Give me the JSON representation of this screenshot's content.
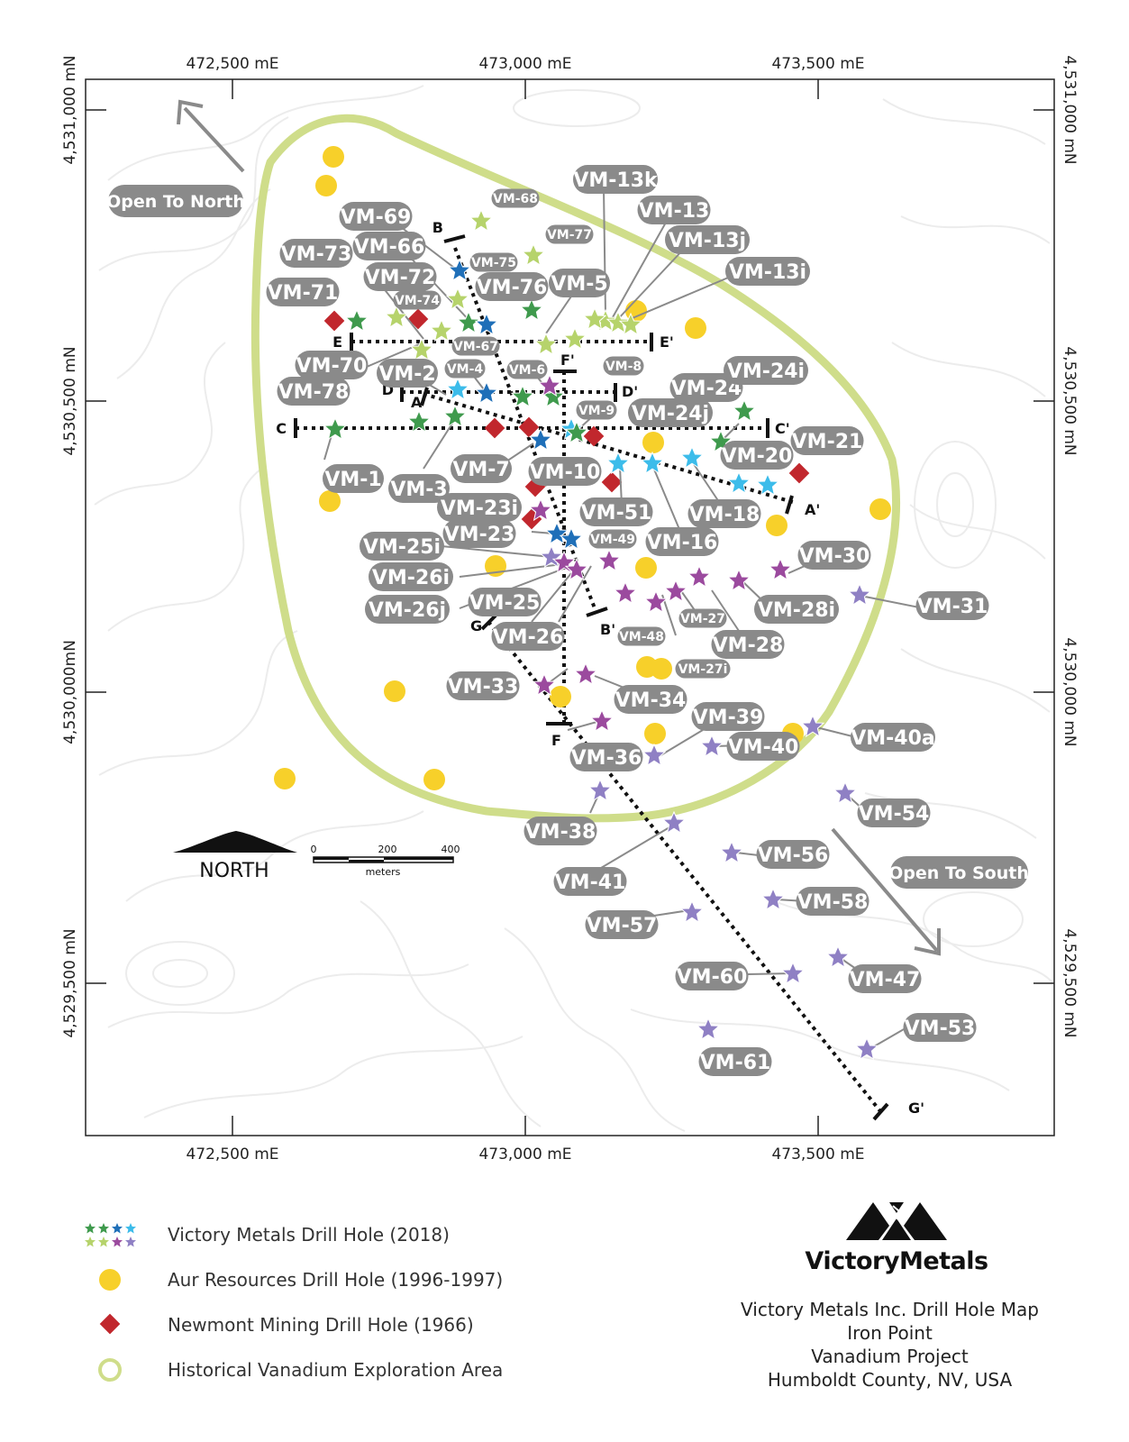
{
  "axes": {
    "top_easting": [
      "472,500 mE",
      "473,000 mE",
      "473,500 mE"
    ],
    "bottom_easting": [
      "472,500 mE",
      "473,000 mE",
      "473,500 mE"
    ],
    "left_northing": [
      "4,531,000 mN",
      "4,530,500 mN",
      "4,530,000mN",
      "4,529,500 mN"
    ],
    "right_northing": [
      "4,531,000 mN",
      "4,530,500 mN",
      "4,530,000 mN",
      "4,529,500 mN"
    ]
  },
  "annotations": {
    "open_north": "Open To North",
    "open_south": "Open To South",
    "north_label": "NORTH",
    "scale_ticks": [
      "0",
      "200",
      "400"
    ],
    "scale_unit": "meters"
  },
  "sections": {
    "A": "A",
    "A_prime": "A'",
    "B": "B",
    "B_prime": "B'",
    "C": "C",
    "C_prime": "C'",
    "D": "D",
    "D_prime": "D'",
    "E": "E",
    "E_prime": "E'",
    "F": "F",
    "F_prime": "F'",
    "G": "G",
    "G_prime": "G'"
  },
  "drill_holes": [
    "VM-1",
    "VM-2",
    "VM-3",
    "VM-4",
    "VM-5",
    "VM-6",
    "VM-7",
    "VM-8",
    "VM-9",
    "VM-10",
    "VM-13k",
    "VM-13",
    "VM-13j",
    "VM-13i",
    "VM-16",
    "VM-18",
    "VM-20",
    "VM-21",
    "VM-23i",
    "VM-23",
    "VM-24",
    "VM-24i",
    "VM-24j",
    "VM-25i",
    "VM-25",
    "VM-26i",
    "VM-26j",
    "VM-26",
    "VM-27",
    "VM-27i",
    "VM-28",
    "VM-28i",
    "VM-30",
    "VM-31",
    "VM-33",
    "VM-34",
    "VM-36",
    "VM-38",
    "VM-39",
    "VM-40",
    "VM-40a",
    "VM-41",
    "VM-47",
    "VM-48",
    "VM-49",
    "VM-51",
    "VM-53",
    "VM-54",
    "VM-56",
    "VM-57",
    "VM-58",
    "VM-60",
    "VM-61",
    "VM-66",
    "VM-67",
    "VM-68",
    "VM-69",
    "VM-70",
    "VM-71",
    "VM-72",
    "VM-73",
    "VM-74",
    "VM-75",
    "VM-76",
    "VM-77",
    "VM-78"
  ],
  "legend": [
    {
      "symbol": "star-set",
      "label": "Victory Metals Drill Hole (2018)"
    },
    {
      "symbol": "yellow-circle",
      "label": "Aur Resources Drill Hole (1996-1997)"
    },
    {
      "symbol": "red-diamond",
      "label": "Newmont Mining Drill Hole (1966)"
    },
    {
      "symbol": "green-ring",
      "label": "Historical Vanadium Exploration Area"
    }
  ],
  "brand": {
    "name": "VictoryMetals"
  },
  "title_lines": [
    "Victory Metals Inc. Drill Hole Map",
    "Iron Point",
    "Vanadium Project",
    "Humboldt County, NV, USA"
  ],
  "colors": {
    "area": "#cfdd8a",
    "aur": "#f7d02a",
    "newmont": "#c1272d",
    "star_dark_green": "#3f9a4d",
    "star_light_green": "#b6d36b",
    "star_dark_blue": "#1f6fb8",
    "star_light_blue": "#3cbcea",
    "star_purple": "#9b4a9e",
    "star_lavender": "#8f80c4",
    "label_bg": "#8a8a8a"
  }
}
